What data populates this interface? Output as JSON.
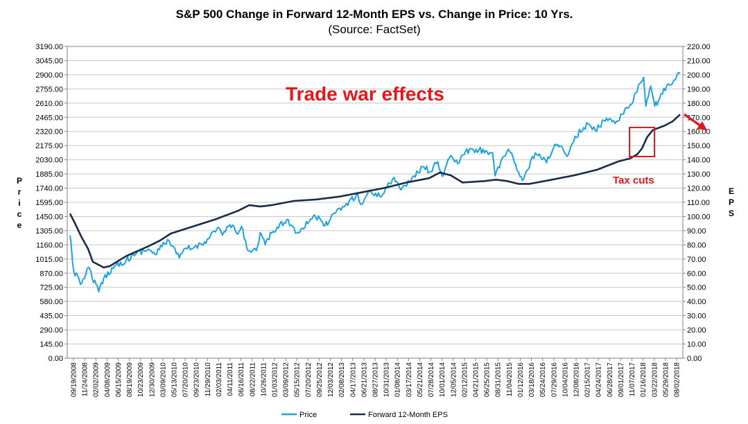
{
  "chart_data": {
    "type": "line",
    "title": "S&P 500 Change in Forward 12-Month EPS vs. Change in Price: 10 Yrs.",
    "subtitle": "(Source: FactSet)",
    "ylabel_left": "Price",
    "ylabel_right": "EPS",
    "ylim_left": [
      0,
      3190
    ],
    "ylim_right": [
      0,
      220
    ],
    "yticks_left": [
      "3190.00",
      "3045.00",
      "2900.00",
      "2755.00",
      "2610.00",
      "2465.00",
      "2320.00",
      "2175.00",
      "2030.00",
      "1885.00",
      "1740.00",
      "1595.00",
      "1450.00",
      "1305.00",
      "1160.00",
      "1015.00",
      "870.00",
      "725.00",
      "580.00",
      "435.00",
      "290.00",
      "145.00",
      "0.00"
    ],
    "yticks_right": [
      "220.00",
      "210.00",
      "200.00",
      "190.00",
      "180.00",
      "170.00",
      "160.00",
      "150.00",
      "140.00",
      "130.00",
      "120.00",
      "110.00",
      "100.00",
      "90.00",
      "80.00",
      "70.00",
      "60.00",
      "50.00",
      "40.00",
      "30.00",
      "20.00",
      "10.00",
      "0.00"
    ],
    "xtick_labels": [
      "09/19/2008",
      "11/24/2008",
      "02/02/2009",
      "04/08/2009",
      "06/15/2009",
      "08/19/2009",
      "10/23/2009",
      "12/30/2009",
      "03/09/2010",
      "05/13/2010",
      "07/20/2010",
      "09/23/2010",
      "11/29/2010",
      "02/03/2011",
      "04/11/2011",
      "06/16/2011",
      "08/22/2011",
      "10/26/2011",
      "01/03/2012",
      "03/09/2012",
      "05/15/2012",
      "07/20/2012",
      "09/25/2012",
      "12/03/2012",
      "02/08/2013",
      "04/17/2013",
      "06/21/2013",
      "08/27/2013",
      "10/31/2013",
      "01/08/2014",
      "03/17/2014",
      "05/21/2014",
      "07/28/2014",
      "10/01/2014",
      "12/05/2014",
      "02/12/2015",
      "04/21/2015",
      "06/25/2015",
      "08/31/2015",
      "11/04/2015",
      "01/12/2016",
      "03/18/2016",
      "05/24/2016",
      "07/29/2016",
      "10/04/2016",
      "12/08/2016",
      "02/15/2017",
      "04/24/2017",
      "06/28/2017",
      "09/01/2017",
      "11/07/2017",
      "01/16/2018",
      "03/22/2018",
      "05/29/2018",
      "08/02/2018"
    ],
    "x_range": [
      "09/19/2008",
      "08/31/2018"
    ],
    "series": [
      {
        "name": "Price",
        "axis": "left",
        "color": "#1aa3e0",
        "points": [
          [
            "09/19/2008",
            1255
          ],
          [
            "10/10/2008",
            900
          ],
          [
            "11/20/2008",
            755
          ],
          [
            "01/06/2009",
            930
          ],
          [
            "03/09/2009",
            680
          ],
          [
            "04/08/2009",
            820
          ],
          [
            "06/12/2009",
            945
          ],
          [
            "08/19/2009",
            1000
          ],
          [
            "10/23/2009",
            1080
          ],
          [
            "12/30/2009",
            1115
          ],
          [
            "02/08/2010",
            1060
          ],
          [
            "04/23/2010",
            1215
          ],
          [
            "07/02/2010",
            1025
          ],
          [
            "08/09/2010",
            1125
          ],
          [
            "09/23/2010",
            1125
          ],
          [
            "11/29/2010",
            1190
          ],
          [
            "02/18/2011",
            1340
          ],
          [
            "03/16/2011",
            1260
          ],
          [
            "04/29/2011",
            1365
          ],
          [
            "06/16/2011",
            1270
          ],
          [
            "07/07/2011",
            1350
          ],
          [
            "08/08/2011",
            1120
          ],
          [
            "10/03/2011",
            1100
          ],
          [
            "10/27/2011",
            1285
          ],
          [
            "11/25/2011",
            1160
          ],
          [
            "01/03/2012",
            1280
          ],
          [
            "04/02/2012",
            1420
          ],
          [
            "06/01/2012",
            1280
          ],
          [
            "09/14/2012",
            1465
          ],
          [
            "11/15/2012",
            1355
          ],
          [
            "01/18/2013",
            1485
          ],
          [
            "03/15/2013",
            1560
          ],
          [
            "05/21/2013",
            1670
          ],
          [
            "06/24/2013",
            1575
          ],
          [
            "08/02/2013",
            1710
          ],
          [
            "10/08/2013",
            1655
          ],
          [
            "12/31/2013",
            1850
          ],
          [
            "02/03/2014",
            1740
          ],
          [
            "04/11/2014",
            1815
          ],
          [
            "06/20/2014",
            1960
          ],
          [
            "08/07/2014",
            1910
          ],
          [
            "09/18/2014",
            2010
          ],
          [
            "10/15/2014",
            1860
          ],
          [
            "12/05/2014",
            2075
          ],
          [
            "01/15/2015",
            1990
          ],
          [
            "03/02/2015",
            2115
          ],
          [
            "05/21/2015",
            2130
          ],
          [
            "08/10/2015",
            2105
          ],
          [
            "08/25/2015",
            1865
          ],
          [
            "11/03/2015",
            2110
          ],
          [
            "12/01/2015",
            2100
          ],
          [
            "01/20/2016",
            1860
          ],
          [
            "02/11/2016",
            1830
          ],
          [
            "04/20/2016",
            2100
          ],
          [
            "06/27/2016",
            2000
          ],
          [
            "08/15/2016",
            2190
          ],
          [
            "11/04/2016",
            2085
          ],
          [
            "12/13/2016",
            2270
          ],
          [
            "03/01/2017",
            2395
          ],
          [
            "04/13/2017",
            2330
          ],
          [
            "06/19/2017",
            2455
          ],
          [
            "08/18/2017",
            2425
          ],
          [
            "11/08/2017",
            2595
          ],
          [
            "01/26/2018",
            2873
          ],
          [
            "02/08/2018",
            2580
          ],
          [
            "03/09/2018",
            2785
          ],
          [
            "04/02/2018",
            2580
          ],
          [
            "05/01/2018",
            2655
          ],
          [
            "06/12/2018",
            2785
          ],
          [
            "07/25/2018",
            2845
          ],
          [
            "08/31/2018",
            2915
          ]
        ]
      },
      {
        "name": "Forward 12-Month EPS",
        "axis": "right",
        "color": "#1c2a4a",
        "points": [
          [
            "09/19/2008",
            102
          ],
          [
            "10/15/2008",
            96
          ],
          [
            "11/24/2008",
            86
          ],
          [
            "01/05/2009",
            77
          ],
          [
            "02/02/2009",
            68
          ],
          [
            "04/08/2009",
            64
          ],
          [
            "05/15/2009",
            65
          ],
          [
            "08/19/2009",
            72
          ],
          [
            "12/30/2009",
            79
          ],
          [
            "03/09/2010",
            83
          ],
          [
            "05/13/2010",
            88
          ],
          [
            "09/23/2010",
            93
          ],
          [
            "02/03/2011",
            98
          ],
          [
            "06/16/2011",
            104
          ],
          [
            "08/22/2011",
            108
          ],
          [
            "10/26/2011",
            107
          ],
          [
            "01/03/2012",
            108
          ],
          [
            "05/15/2012",
            111
          ],
          [
            "09/25/2012",
            112
          ],
          [
            "02/08/2013",
            114
          ],
          [
            "06/21/2013",
            117
          ],
          [
            "10/31/2013",
            120
          ],
          [
            "03/17/2014",
            124
          ],
          [
            "07/28/2014",
            127
          ],
          [
            "10/01/2014",
            131
          ],
          [
            "12/05/2014",
            129
          ],
          [
            "02/12/2015",
            124
          ],
          [
            "06/25/2015",
            125
          ],
          [
            "08/31/2015",
            126
          ],
          [
            "11/04/2015",
            125
          ],
          [
            "01/12/2016",
            123
          ],
          [
            "03/18/2016",
            123
          ],
          [
            "07/29/2016",
            126
          ],
          [
            "12/08/2016",
            129
          ],
          [
            "04/24/2017",
            133
          ],
          [
            "09/01/2017",
            139
          ],
          [
            "11/07/2017",
            141
          ],
          [
            "12/20/2017",
            144
          ],
          [
            "01/16/2018",
            148
          ],
          [
            "02/16/2018",
            156
          ],
          [
            "03/22/2018",
            161
          ],
          [
            "05/29/2018",
            164
          ],
          [
            "07/16/2018",
            167
          ],
          [
            "08/31/2018",
            172
          ]
        ]
      }
    ],
    "legend": [
      "Price",
      "Forward 12-Month EPS"
    ],
    "legend_position": "bottom",
    "grid": true,
    "annotations": [
      {
        "id": "trade-war",
        "text": "Trade war effects",
        "color": "#e8161b"
      },
      {
        "id": "tax-cuts",
        "text": "Tax cuts",
        "color": "#e8161b"
      }
    ]
  }
}
